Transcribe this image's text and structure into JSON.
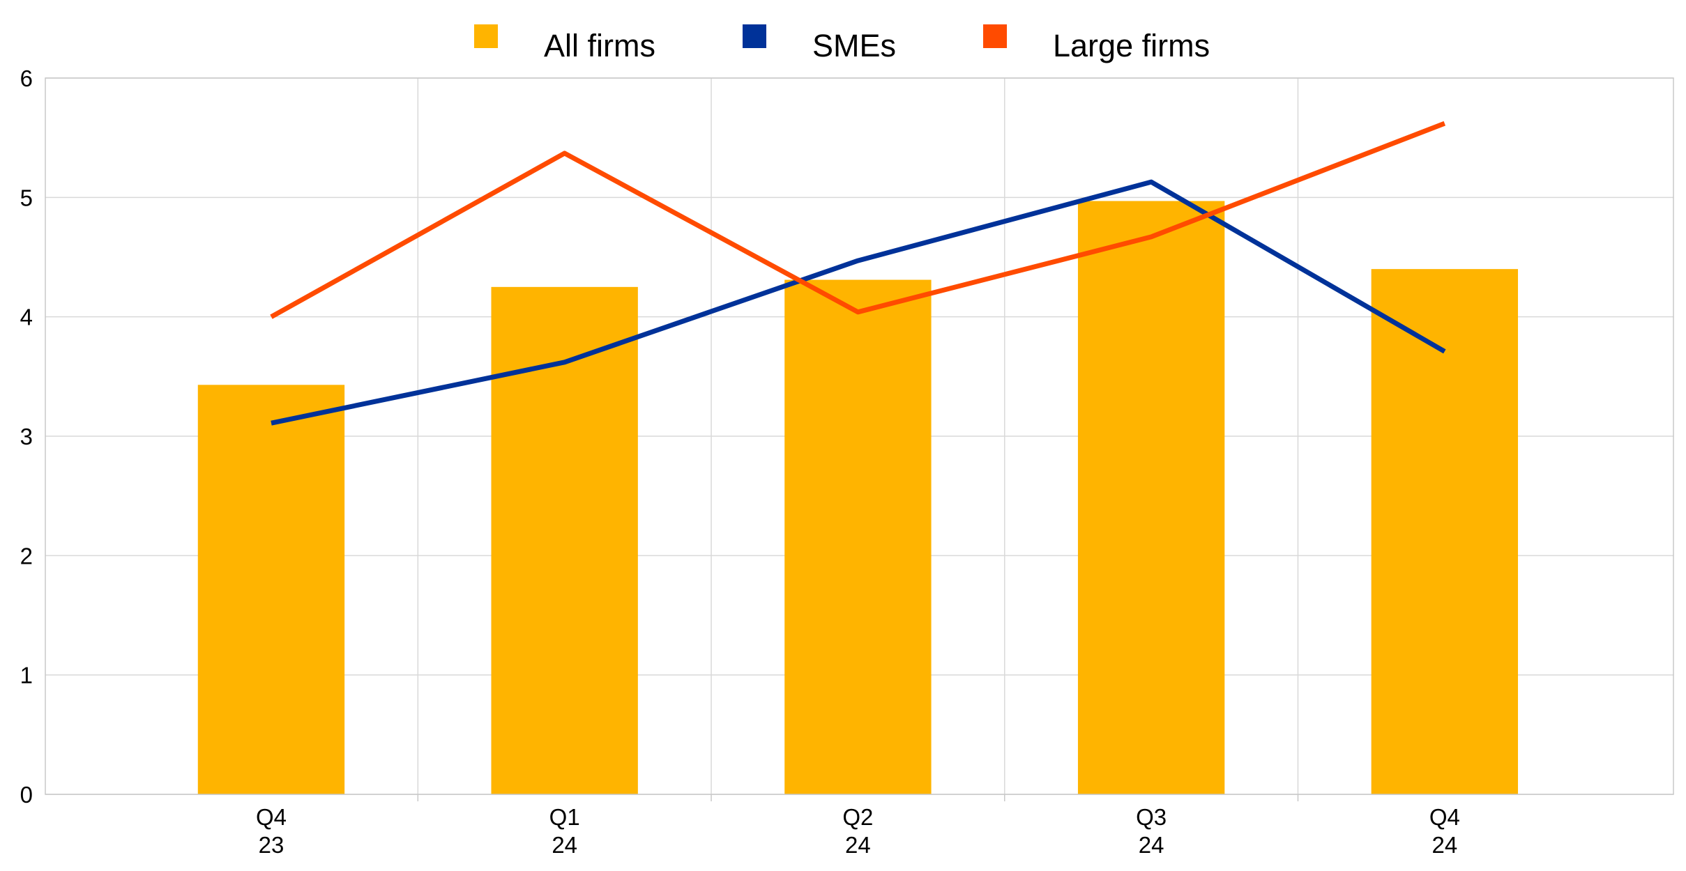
{
  "chart_data": {
    "type": "bar",
    "categories": [
      [
        "Q4",
        "23"
      ],
      [
        "Q1",
        "24"
      ],
      [
        "Q2",
        "24"
      ],
      [
        "Q3",
        "24"
      ],
      [
        "Q4",
        "24"
      ]
    ],
    "series": [
      {
        "name": "All firms",
        "type": "bar",
        "color": "#FFB400",
        "values": [
          3.43,
          4.25,
          4.31,
          4.97,
          4.4
        ]
      },
      {
        "name": "SMEs",
        "type": "line",
        "color": "#003299",
        "values": [
          3.11,
          3.62,
          4.47,
          5.13,
          3.71
        ]
      },
      {
        "name": "Large firms",
        "type": "line",
        "color": "#FF4B00",
        "values": [
          4.0,
          5.37,
          4.04,
          4.67,
          5.62
        ]
      }
    ],
    "ylim": [
      0,
      6
    ],
    "yticks": [
      0,
      1,
      2,
      3,
      4,
      5,
      6
    ],
    "grid": true,
    "legend_position": "top"
  },
  "colors": {
    "grid": "#d9d9d9",
    "axis": "#c8c8c8",
    "text": "#000000"
  }
}
